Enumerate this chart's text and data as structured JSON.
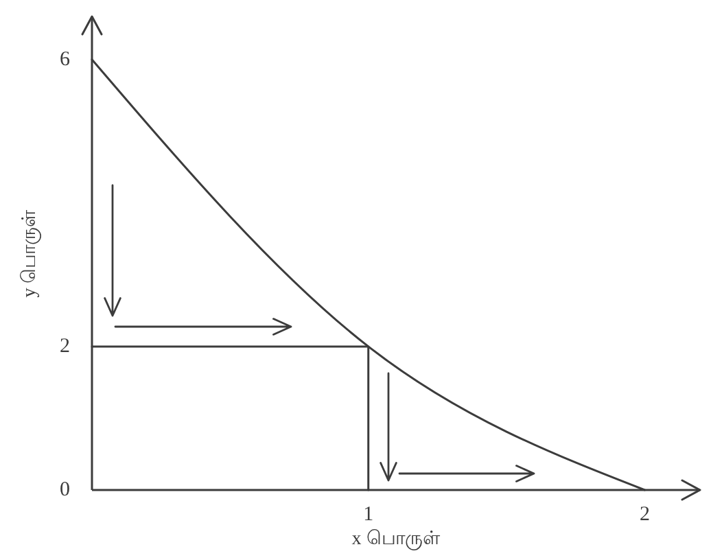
{
  "chart_data": {
    "type": "line",
    "xlabel": "x பொருள்",
    "ylabel": "y பொருள்",
    "xlim": [
      0,
      2.2
    ],
    "ylim": [
      0,
      6.6
    ],
    "xticks": [
      1,
      2
    ],
    "yticks": [
      0,
      2,
      6
    ],
    "series": [
      {
        "color": "#3c3c3c",
        "x": [
          0,
          1,
          2
        ],
        "values": [
          6,
          2,
          0
        ]
      },
      {
        "color": "#3c3c3c",
        "x": [
          0,
          1,
          1
        ],
        "values": [
          2,
          2,
          0
        ]
      }
    ]
  }
}
